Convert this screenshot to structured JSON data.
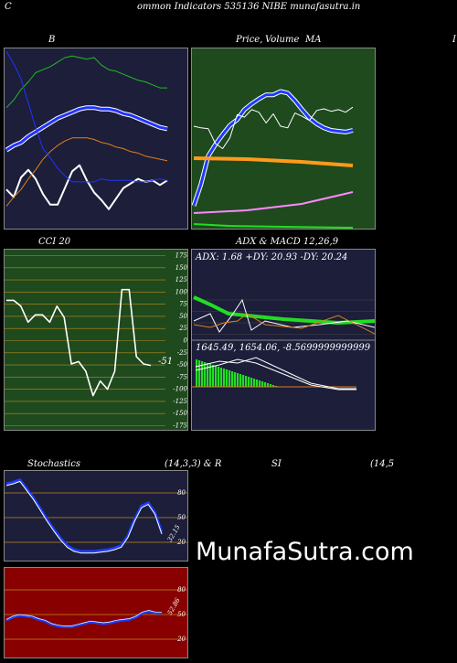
{
  "header": {
    "corner_left": "C",
    "title": "ommon  Indicators 535136  NIBE munafasutra.in"
  },
  "panels": {
    "bb": {
      "label": "B"
    },
    "price": {
      "label_a": "Price,",
      "label_b": "Volume",
      "label_c": "MA",
      "right_edge": "I"
    },
    "cci": {
      "label": "CCI 20",
      "value_label": "-51"
    },
    "adx": {
      "label": "ADX  & MACD 12,26,9",
      "adx_text": "ADX: 1.68  +DY: 20.93 -DY: 20.24",
      "macd_text": "1645.49,  1654.06,  -8.5699999999999"
    },
    "stoch": {
      "label_left": "Stochastics",
      "label_mid": "(14,3,3) & R",
      "value_label": "32.15"
    },
    "rsi": {
      "label_left": "SI",
      "label_right": "(14,5",
      "value_label": "52.86"
    }
  },
  "watermark": "MunafaSutra.com",
  "colors": {
    "navy": "#1c1e3a",
    "green_bg": "#1e4a1e",
    "red_bg": "#880000",
    "grid": "#c08a1a",
    "orange": "#e0801a",
    "blue": "#1a3cff",
    "bright_green": "#22dd22"
  },
  "chart_data": [
    {
      "type": "line",
      "title": "B",
      "series": [
        {
          "values": [
            127,
            122,
            135,
            140,
            134,
            124,
            117,
            117,
            128,
            139,
            143,
            133,
            125,
            120,
            114,
            121,
            128,
            131,
            134,
            132,
            133,
            130,
            133
          ]
        },
        {
          "values": [
            181,
            186,
            193,
            198,
            204,
            206,
            208,
            211,
            214,
            215,
            214,
            213,
            214,
            209,
            206,
            205,
            203,
            201,
            199,
            198,
            196,
            194,
            194
          ]
        },
        {
          "values": [
            153,
            156,
            158,
            162,
            165,
            168,
            171,
            174,
            176,
            178,
            180,
            181,
            181,
            180,
            180,
            179,
            177,
            176,
            174,
            172,
            170,
            168,
            167
          ]
        },
        {
          "values": [
            116,
            122,
            127,
            134,
            140,
            147,
            152,
            156,
            159,
            161,
            161,
            161,
            160,
            158,
            157,
            155,
            154,
            152,
            151,
            149,
            148,
            147,
            146
          ]
        },
        {
          "values": [
            218,
            210,
            200,
            184,
            168,
            154,
            148,
            141,
            136,
            132,
            132,
            132,
            132,
            134,
            133,
            133,
            133,
            133,
            132,
            132,
            133,
            134,
            133
          ]
        }
      ]
    },
    {
      "type": "line",
      "title": "Price, Volume, MA",
      "series": [
        {
          "values": [
            126,
            124,
            123,
            105,
            99,
            112,
            140,
            137,
            146,
            143,
            130,
            141,
            126,
            124,
            142,
            138,
            133,
            145,
            147,
            144,
            146,
            143,
            149
          ]
        },
        {
          "values": [
            30,
            56,
            90,
            104,
            116,
            127,
            134,
            146,
            153,
            159,
            164,
            164,
            168,
            166,
            157,
            146,
            136,
            129,
            124,
            121,
            120,
            119,
            121
          ]
        }
      ]
    },
    {
      "type": "line",
      "title": "CCI 20",
      "ylim": [
        -175,
        175
      ],
      "yticks": [
        175,
        150,
        125,
        100,
        75,
        50,
        25,
        0,
        -25,
        -50,
        -75,
        -100,
        -125,
        -150,
        -175
      ],
      "values": [
        83,
        83,
        71,
        38,
        53,
        53,
        38,
        71,
        48,
        -48,
        -43,
        -63,
        -113,
        -83,
        -100,
        -63,
        105,
        105,
        -33,
        -48,
        -51
      ]
    },
    {
      "type": "line",
      "title": "ADX & MACD 12,26,9",
      "yticks": [
        100,
        75,
        50,
        25
      ],
      "adx": {
        "adx": 1.68,
        "plus_dy": 20.93,
        "minus_dy": 20.24
      },
      "macd": [
        1645.49,
        1654.06,
        -8.5699999999999
      ]
    },
    {
      "type": "line",
      "title": "Stochastics (14,3,3)",
      "ylim": [
        0,
        100
      ],
      "yticks": [
        80,
        50,
        20
      ],
      "values": [
        91,
        93,
        96,
        85,
        74,
        61,
        48,
        36,
        25,
        16,
        11,
        9,
        9,
        9,
        10,
        11,
        13,
        16,
        28,
        48,
        64,
        68,
        56,
        32
      ]
    },
    {
      "type": "line",
      "title": "RSI (14,5",
      "ylim": [
        0,
        100
      ],
      "yticks": [
        80,
        50,
        20
      ],
      "values": [
        43,
        47,
        49,
        48,
        47,
        44,
        42,
        38,
        36,
        35,
        35,
        37,
        39,
        41,
        40,
        39,
        40,
        42,
        43,
        44,
        47,
        52,
        54,
        52,
        52
      ]
    }
  ]
}
